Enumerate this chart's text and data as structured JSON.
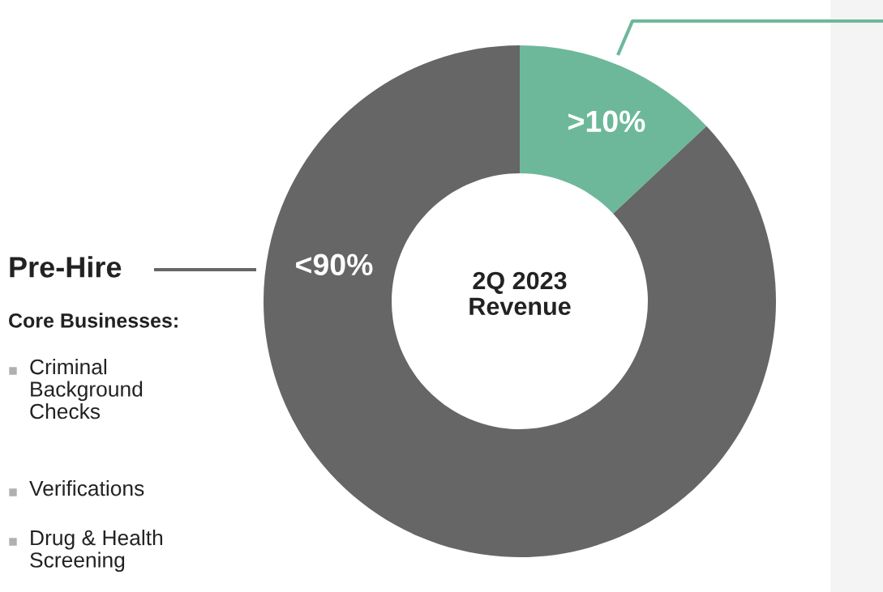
{
  "chart_data": {
    "type": "donut",
    "categories": [
      null,
      "Pre-Hire"
    ],
    "values": [
      13,
      87
    ],
    "colors": [
      "#6db89a",
      "#666666"
    ],
    "value_labels": [
      ">10%",
      "<90%"
    ],
    "annotations": [
      "2Q 2023\nRevenue",
      "Core Businesses:",
      "Criminal\nBackground\nChecks",
      "Verifications",
      "Drug & Health\nScreening"
    ],
    "legend": false
  }
}
